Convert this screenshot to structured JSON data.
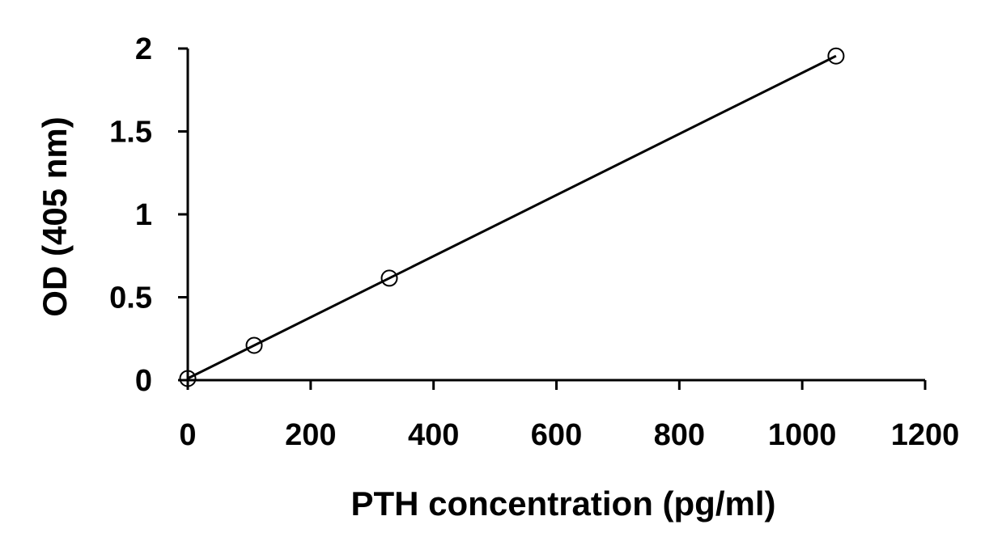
{
  "chart_data": {
    "type": "scatter",
    "title": "",
    "xlabel": "PTH concentration (pg/ml)",
    "ylabel": "OD (405 nm)",
    "xlim": [
      0,
      1200
    ],
    "ylim": [
      0,
      2
    ],
    "xticks": [
      0,
      200,
      400,
      600,
      800,
      1000,
      1200
    ],
    "yticks": [
      0,
      0.5,
      1,
      1.5,
      2
    ],
    "xtick_labels": [
      "0",
      "200",
      "400",
      "600",
      "800",
      "1000",
      "1200"
    ],
    "ytick_labels": [
      "0",
      "0.5",
      "1",
      "1.5",
      "2"
    ],
    "grid": false,
    "legend": "none",
    "series": [
      {
        "marker": "open-circle",
        "trendline": "linear",
        "points": [
          {
            "x": 0,
            "y": 0.01
          },
          {
            "x": 108,
            "y": 0.21
          },
          {
            "x": 328,
            "y": 0.615
          },
          {
            "x": 1055,
            "y": 1.955
          }
        ]
      }
    ],
    "colors": {
      "line": "#000000",
      "marker_fill": "#ffffff",
      "marker_stroke": "#000000"
    }
  }
}
